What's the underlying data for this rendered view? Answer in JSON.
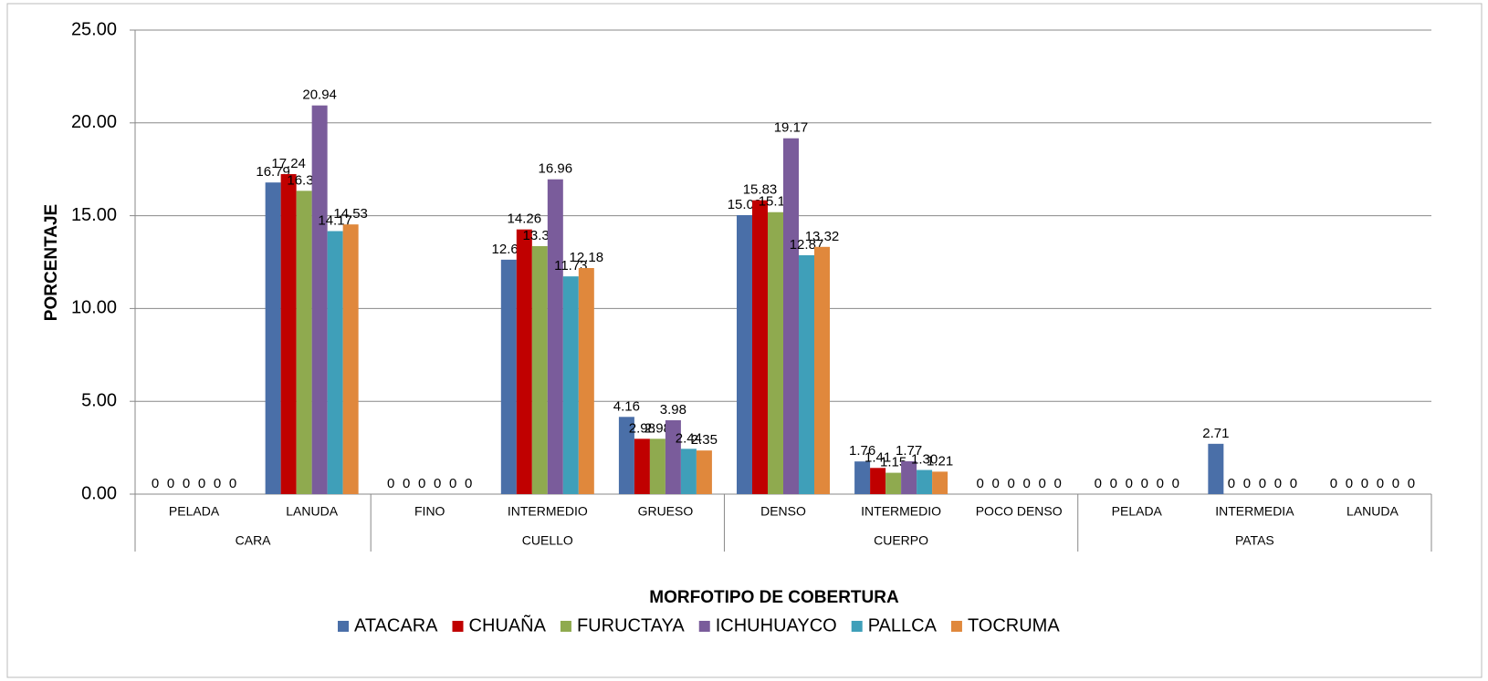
{
  "chart_data": {
    "type": "bar",
    "x_label": "MORFOTIPO DE COBERTURA",
    "y_label": "PORCENTAJE",
    "groups": [
      {
        "label": "CARA",
        "categories": [
          "PELADA",
          "LANUDA"
        ]
      },
      {
        "label": "CUELLO",
        "categories": [
          "FINO",
          "INTERMEDIO",
          "GRUESO"
        ]
      },
      {
        "label": "CUERPO",
        "categories": [
          "DENSO",
          "INTERMEDIO",
          "POCO DENSO"
        ]
      },
      {
        "label": "PATAS",
        "categories": [
          "PELADA",
          "INTERMEDIA",
          "LANUDA"
        ]
      }
    ],
    "series": [
      {
        "name": "ATACARA",
        "color": "#4a6fa8",
        "values": [
          0,
          16.79,
          0,
          12.63,
          4.16,
          15.03,
          1.76,
          0,
          0,
          2.71,
          0
        ],
        "value_labels": [
          "0",
          "16.79",
          "0",
          "12.63",
          "4.16",
          "15.03",
          "1.76",
          "0",
          "0",
          "2.71",
          "0"
        ]
      },
      {
        "name": "CHUAÑA",
        "color": "#c00000",
        "values": [
          0,
          17.24,
          0,
          14.26,
          2.98,
          15.83,
          1.41,
          0,
          0,
          0,
          0
        ],
        "value_labels": [
          "0",
          "17.24",
          "0",
          "14.26",
          "2.98",
          "15.83",
          "1.41",
          "0",
          "0",
          "0",
          "0"
        ]
      },
      {
        "name": "FURUCTAYA",
        "color": "#8faa4f",
        "values": [
          0,
          16.34,
          0,
          13.36,
          2.98,
          15.19,
          1.15,
          0,
          0,
          0,
          0
        ],
        "value_labels": [
          "0",
          "16.34",
          "0",
          "13.36",
          "2.98",
          "15.19",
          "1.15",
          "0",
          "0",
          "0",
          "0"
        ]
      },
      {
        "name": "ICHUHUAYCO",
        "color": "#7a5c9b",
        "values": [
          0,
          20.94,
          0,
          16.96,
          3.98,
          19.17,
          1.77,
          0,
          0,
          0,
          0
        ],
        "value_labels": [
          "0",
          "20.94",
          "0",
          "16.96",
          "3.98",
          "19.17",
          "1.77",
          "0",
          "0",
          "0",
          "0"
        ]
      },
      {
        "name": "PALLCA",
        "color": "#3f9fb9",
        "values": [
          0,
          14.17,
          0,
          11.73,
          2.44,
          12.87,
          1.3,
          0,
          0,
          0,
          0
        ],
        "value_labels": [
          "0",
          "14.17",
          "0",
          "11.73",
          "2.44",
          "12.87",
          "1.30",
          "0",
          "0",
          "0",
          "0"
        ]
      },
      {
        "name": "TOCRUMA",
        "color": "#e0883c",
        "values": [
          0,
          14.53,
          0,
          12.18,
          2.35,
          13.32,
          1.21,
          0,
          0,
          0,
          0
        ],
        "value_labels": [
          "0",
          "14.53",
          "0",
          "12.18",
          "2.35",
          "13.32",
          "1.21",
          "0",
          "0",
          "0",
          "0"
        ]
      }
    ],
    "ylim": [
      0,
      25
    ],
    "yticks": [
      {
        "value": 0,
        "label": "0.00"
      },
      {
        "value": 5,
        "label": "5.00"
      },
      {
        "value": 10,
        "label": "10.00"
      },
      {
        "value": 15,
        "label": "15.00"
      },
      {
        "value": 20,
        "label": "20.00"
      },
      {
        "value": 25,
        "label": "25.00"
      }
    ],
    "grid": true,
    "legend": "bottom"
  }
}
